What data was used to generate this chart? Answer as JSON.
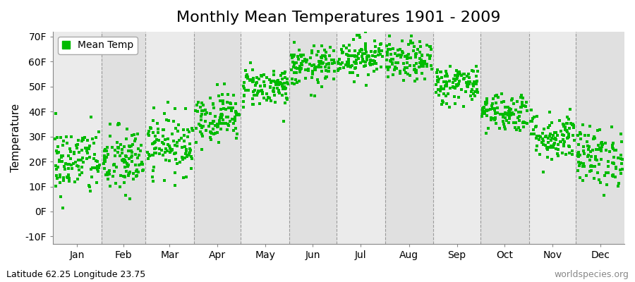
{
  "title": "Monthly Mean Temperatures 1901 - 2009",
  "ylabel": "Temperature",
  "subtitle_left": "Latitude 62.25 Longitude 23.75",
  "subtitle_right": "worldspecies.org",
  "legend_label": "Mean Temp",
  "ylim": [
    -13,
    72
  ],
  "yticks": [
    -10,
    0,
    10,
    20,
    30,
    40,
    50,
    60,
    70
  ],
  "ytick_labels": [
    "-10F",
    "0F",
    "10F",
    "20F",
    "30F",
    "40F",
    "50F",
    "60F",
    "70F"
  ],
  "months": [
    "Jan",
    "Feb",
    "Mar",
    "Apr",
    "May",
    "Jun",
    "Jul",
    "Aug",
    "Sep",
    "Oct",
    "Nov",
    "Dec"
  ],
  "dot_color": "#00BB00",
  "background_color": "#ffffff",
  "band_colors": [
    "#ebebeb",
    "#e0e0e0"
  ],
  "n_years": 109,
  "monthly_mean_F": [
    20,
    20,
    27,
    38,
    50,
    58,
    62,
    60,
    51,
    40,
    30,
    22
  ],
  "monthly_std_F": [
    7,
    7,
    6,
    5,
    4,
    4,
    4,
    4,
    4,
    4,
    5,
    6
  ],
  "seed": 42,
  "title_fontsize": 16,
  "axis_fontsize": 11,
  "tick_fontsize": 10,
  "annotation_fontsize": 9,
  "marker_size": 3,
  "days_per_month": [
    31,
    28,
    31,
    30,
    31,
    30,
    31,
    31,
    30,
    31,
    30,
    31
  ]
}
